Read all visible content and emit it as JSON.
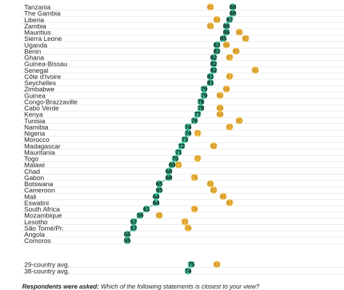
{
  "chart_data": {
    "type": "scatter",
    "title": "",
    "xlabel": "",
    "ylabel": "",
    "xlim": [
      52,
      97
    ],
    "grid": true,
    "colors": {
      "series_a": "#2bb58e",
      "series_b": "#f2b630",
      "grid": "#d9d9d9"
    },
    "categories": [
      "Tanzania",
      "The Gambia",
      "Liberia",
      "Zambia",
      "Mauritius",
      "Sierra Leone",
      "Uganda",
      "Benin",
      "Ghana",
      "Guinea-Bissau",
      "Senegal",
      "Côte d'Ivoire",
      "Seychelles",
      "Zimbabwe",
      "Guinea",
      "Congo-Brazzaville",
      "Cabo Verde",
      "Kenya",
      "Tunisia",
      "Namibia",
      "Nigeria",
      "Morocco",
      "Madagascar",
      "Mauritania",
      "Togo",
      "Malawi",
      "Chad",
      "Gabon",
      "Botswana",
      "Cameroon",
      "Mali",
      "Eswatini",
      "South Africa",
      "Mozambique",
      "Lesotho",
      "São Tomé/Pr.",
      "Angola",
      "Comoros",
      "29-country avg.",
      "38-country avg."
    ],
    "series": [
      {
        "values": [
          88,
          88,
          87,
          86,
          86,
          85,
          83,
          83,
          82,
          82,
          82,
          81,
          81,
          79,
          79,
          78,
          78,
          77,
          76,
          74,
          74,
          73,
          72,
          71,
          70,
          69,
          68,
          68,
          65,
          65,
          64,
          64,
          61,
          59,
          57,
          57,
          55,
          55,
          75,
          74
        ]
      },
      {
        "values": [
          81,
          null,
          83,
          81,
          90,
          92,
          86,
          89,
          87,
          null,
          95,
          87,
          null,
          86,
          84,
          null,
          84,
          84,
          90,
          87,
          77,
          null,
          82,
          null,
          77,
          71,
          null,
          76,
          81,
          82,
          85,
          87,
          76,
          65,
          73,
          74,
          null,
          null,
          83,
          null
        ]
      }
    ]
  },
  "footnote": {
    "lead": "Respondents were asked:",
    "text": "Which of the following statements is closest to your view?"
  }
}
